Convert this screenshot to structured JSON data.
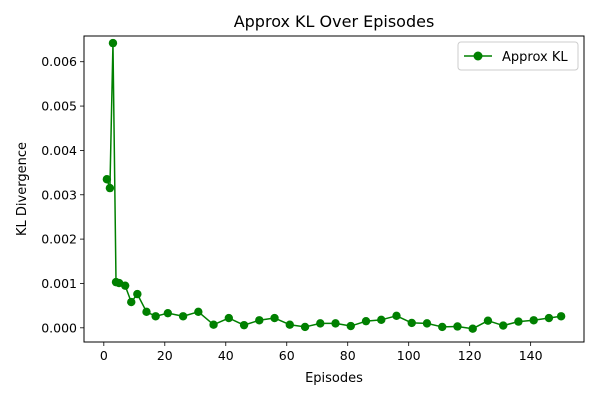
{
  "chart_data": {
    "type": "line",
    "title": "Approx KL Over Episodes",
    "xlabel": "Episodes",
    "ylabel": "KL Divergence",
    "xlim": [
      -6.5,
      157.5
    ],
    "ylim": [
      -0.00032,
      0.00658
    ],
    "xticks": [
      0,
      20,
      40,
      60,
      80,
      100,
      120,
      140
    ],
    "xtick_labels": [
      "0",
      "20",
      "40",
      "60",
      "80",
      "100",
      "120",
      "140"
    ],
    "yticks": [
      0.0,
      0.001,
      0.002,
      0.003,
      0.004,
      0.005,
      0.006
    ],
    "ytick_labels": [
      "0.000",
      "0.001",
      "0.002",
      "0.003",
      "0.004",
      "0.005",
      "0.006"
    ],
    "grid": false,
    "legend_position": "top-right",
    "series": [
      {
        "name": "Approx KL",
        "color": "#008000",
        "marker": "circle",
        "x": [
          1,
          2,
          3,
          4,
          5,
          7,
          9,
          11,
          14,
          17,
          21,
          26,
          31,
          36,
          41,
          46,
          51,
          56,
          61,
          66,
          71,
          76,
          81,
          86,
          91,
          96,
          101,
          106,
          111,
          116,
          121,
          126,
          131,
          136,
          141,
          146,
          150
        ],
        "y": [
          0.00335,
          0.00315,
          0.00642,
          0.00103,
          0.00101,
          0.00095,
          0.00058,
          0.00076,
          0.00036,
          0.00026,
          0.00033,
          0.00026,
          0.00036,
          7e-05,
          0.00022,
          6e-05,
          0.00017,
          0.00022,
          7e-05,
          2e-05,
          0.0001,
          0.0001,
          4e-05,
          0.00015,
          0.00018,
          0.00027,
          0.00011,
          0.0001,
          2e-05,
          3e-05,
          -2e-05,
          0.00016,
          5e-05,
          0.00014,
          0.00017,
          0.00022,
          0.00026
        ]
      }
    ]
  }
}
